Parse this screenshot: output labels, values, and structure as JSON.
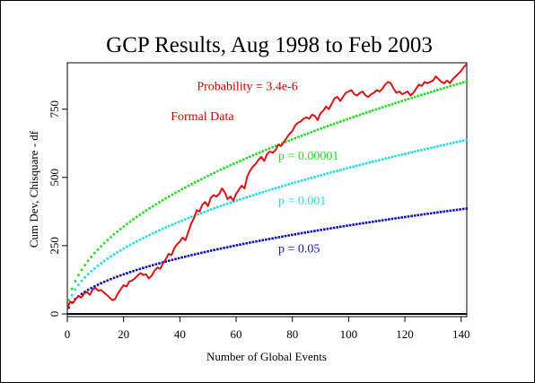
{
  "chart_data": {
    "type": "line",
    "title": "GCP Results, Aug 1998 to Feb 2003",
    "xlabel": "Number of Global Events",
    "ylabel": "Cum Dev, Chisquare - df",
    "xlim": [
      0,
      142
    ],
    "ylim": [
      -10,
      920
    ],
    "x_ticks": [
      0,
      20,
      40,
      60,
      80,
      100,
      120,
      140
    ],
    "y_ticks": [
      0,
      250,
      500,
      750
    ],
    "grid": false,
    "annotations": [
      {
        "text": "Probability = 3.4e-6",
        "color": "#cc0000",
        "x": 64,
        "y": 820
      },
      {
        "text": "Formal Data",
        "color": "#cc0000",
        "x": 48,
        "y": 710
      }
    ],
    "series": [
      {
        "name": "Formal Data",
        "style": "line",
        "color": "#dd1111",
        "points": [
          [
            0,
            20
          ],
          [
            1,
            45
          ],
          [
            2,
            40
          ],
          [
            3,
            55
          ],
          [
            4,
            65
          ],
          [
            5,
            60
          ],
          [
            6,
            75
          ],
          [
            7,
            80
          ],
          [
            8,
            70
          ],
          [
            9,
            90
          ],
          [
            10,
            95
          ],
          [
            11,
            85
          ],
          [
            12,
            88
          ],
          [
            13,
            78
          ],
          [
            14,
            70
          ],
          [
            15,
            60
          ],
          [
            16,
            50
          ],
          [
            17,
            55
          ],
          [
            18,
            75
          ],
          [
            19,
            90
          ],
          [
            20,
            105
          ],
          [
            21,
            100
          ],
          [
            22,
            118
          ],
          [
            23,
            122
          ],
          [
            24,
            130
          ],
          [
            25,
            140
          ],
          [
            26,
            150
          ],
          [
            27,
            142
          ],
          [
            28,
            145
          ],
          [
            29,
            130
          ],
          [
            30,
            140
          ],
          [
            31,
            158
          ],
          [
            32,
            170
          ],
          [
            33,
            165
          ],
          [
            34,
            185
          ],
          [
            35,
            200
          ],
          [
            36,
            220
          ],
          [
            37,
            215
          ],
          [
            38,
            240
          ],
          [
            39,
            255
          ],
          [
            40,
            265
          ],
          [
            41,
            280
          ],
          [
            42,
            270
          ],
          [
            43,
            300
          ],
          [
            44,
            330
          ],
          [
            45,
            350
          ],
          [
            46,
            380
          ],
          [
            47,
            375
          ],
          [
            48,
            400
          ],
          [
            49,
            410
          ],
          [
            50,
            395
          ],
          [
            51,
            425
          ],
          [
            52,
            435
          ],
          [
            53,
            430
          ],
          [
            54,
            440
          ],
          [
            55,
            460
          ],
          [
            56,
            445
          ],
          [
            57,
            420
          ],
          [
            58,
            430
          ],
          [
            59,
            415
          ],
          [
            60,
            440
          ],
          [
            61,
            455
          ],
          [
            62,
            470
          ],
          [
            63,
            460
          ],
          [
            64,
            505
          ],
          [
            65,
            525
          ],
          [
            66,
            540
          ],
          [
            67,
            550
          ],
          [
            68,
            565
          ],
          [
            69,
            575
          ],
          [
            70,
            560
          ],
          [
            71,
            585
          ],
          [
            72,
            595
          ],
          [
            73,
            590
          ],
          [
            74,
            600
          ],
          [
            75,
            620
          ],
          [
            76,
            615
          ],
          [
            77,
            630
          ],
          [
            78,
            645
          ],
          [
            79,
            660
          ],
          [
            80,
            670
          ],
          [
            81,
            690
          ],
          [
            82,
            700
          ],
          [
            83,
            705
          ],
          [
            84,
            715
          ],
          [
            85,
            720
          ],
          [
            86,
            715
          ],
          [
            87,
            730
          ],
          [
            88,
            725
          ],
          [
            89,
            710
          ],
          [
            90,
            735
          ],
          [
            91,
            745
          ],
          [
            92,
            760
          ],
          [
            93,
            750
          ],
          [
            94,
            770
          ],
          [
            95,
            790
          ],
          [
            96,
            795
          ],
          [
            97,
            780
          ],
          [
            98,
            795
          ],
          [
            99,
            810
          ],
          [
            100,
            815
          ],
          [
            101,
            820
          ],
          [
            102,
            805
          ],
          [
            103,
            800
          ],
          [
            104,
            810
          ],
          [
            105,
            815
          ],
          [
            106,
            800
          ],
          [
            107,
            795
          ],
          [
            108,
            805
          ],
          [
            109,
            810
          ],
          [
            110,
            820
          ],
          [
            111,
            815
          ],
          [
            112,
            825
          ],
          [
            113,
            840
          ],
          [
            114,
            850
          ],
          [
            115,
            845
          ],
          [
            116,
            825
          ],
          [
            117,
            810
          ],
          [
            118,
            815
          ],
          [
            119,
            805
          ],
          [
            120,
            810
          ],
          [
            121,
            815
          ],
          [
            122,
            800
          ],
          [
            123,
            810
          ],
          [
            124,
            825
          ],
          [
            125,
            840
          ],
          [
            126,
            835
          ],
          [
            127,
            850
          ],
          [
            128,
            845
          ],
          [
            129,
            850
          ],
          [
            130,
            855
          ],
          [
            131,
            870
          ],
          [
            132,
            860
          ],
          [
            133,
            850
          ],
          [
            134,
            845
          ],
          [
            135,
            855
          ],
          [
            136,
            845
          ],
          [
            137,
            860
          ],
          [
            138,
            870
          ],
          [
            139,
            880
          ],
          [
            140,
            890
          ],
          [
            141,
            905
          ],
          [
            142,
            915
          ]
        ]
      },
      {
        "name": "p = 0.00001",
        "style": "dotted",
        "color": "#22dd22",
        "label_at": [
          75,
          565
        ],
        "equation": "y = 71.5 * sqrt(x)"
      },
      {
        "name": "p = 0.001",
        "style": "dotted",
        "color": "#22dddd",
        "label_at": [
          75,
          400
        ],
        "equation": "y = 53.5 * sqrt(x)"
      },
      {
        "name": "p = 0.05",
        "style": "dotted",
        "color": "#1111bb",
        "label_at": [
          75,
          225
        ],
        "equation": "y = 32.4 * sqrt(x)"
      }
    ]
  }
}
